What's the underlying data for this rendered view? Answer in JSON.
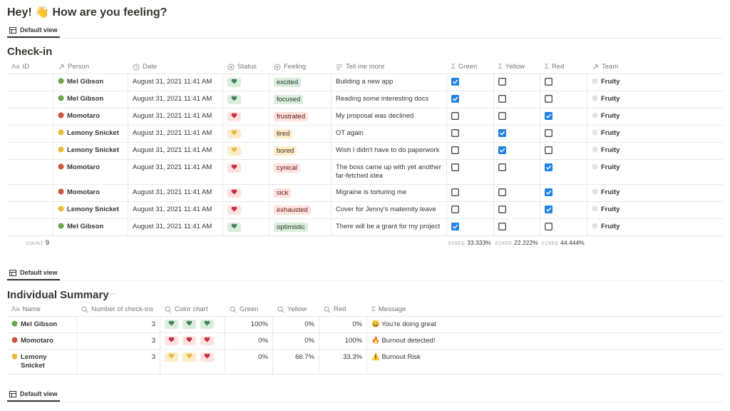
{
  "header": {
    "title": "Hey! 👋 How are you feeling?"
  },
  "views": [
    "Default view",
    "Default view",
    "Default view"
  ],
  "checkin": {
    "title": "Check-in",
    "columns": [
      {
        "icon": "Aa",
        "label": "ID"
      },
      {
        "label": "Person"
      },
      {
        "label": "Date"
      },
      {
        "label": "Status"
      },
      {
        "label": "Feeling"
      },
      {
        "label": "Tell me more"
      },
      {
        "icon": "Σ",
        "label": "Green"
      },
      {
        "icon": "Σ",
        "label": "Yellow"
      },
      {
        "icon": "Σ",
        "label": "Red"
      },
      {
        "label": "Team"
      }
    ],
    "rows": [
      {
        "person": "Mel Gibson",
        "person_color": "green",
        "date": "August 31, 2021 11:41 AM",
        "status": "green",
        "feeling": "excited",
        "text": "Building a new app",
        "checks": [
          true,
          false,
          false
        ],
        "team": "Fruity"
      },
      {
        "person": "Mel Gibson",
        "person_color": "green",
        "date": "August 31, 2021 11:41 AM",
        "status": "green",
        "feeling": "focused",
        "text": "Reading some interesting docs",
        "checks": [
          true,
          false,
          false
        ],
        "team": "Fruity"
      },
      {
        "person": "Momotaro",
        "person_color": "red",
        "date": "August 31, 2021 11:41 AM",
        "status": "red",
        "feeling": "frustrated",
        "text": "My proposal was declined",
        "checks": [
          false,
          false,
          true
        ],
        "team": "Fruity"
      },
      {
        "person": "Lemony Snicket",
        "person_color": "yellow",
        "date": "August 31, 2021 11:41 AM",
        "status": "yellow",
        "feeling": "tired",
        "text": "OT again",
        "checks": [
          false,
          true,
          false
        ],
        "team": "Fruity"
      },
      {
        "person": "Lemony Snicket",
        "person_color": "yellow",
        "date": "August 31, 2021 11:41 AM",
        "status": "yellow",
        "feeling": "bored",
        "text": "Wish I didn't have to do paperwork",
        "checks": [
          false,
          true,
          false
        ],
        "team": "Fruity"
      },
      {
        "person": "Momotaro",
        "person_color": "red",
        "date": "August 31, 2021 11:41 AM",
        "status": "red",
        "feeling": "cynical",
        "text": "The boss came up with yet another far-fetched idea",
        "checks": [
          false,
          false,
          true
        ],
        "team": "Fruity"
      },
      {
        "person": "Momotaro",
        "person_color": "red",
        "date": "August 31, 2021 11:41 AM",
        "status": "red",
        "feeling": "sick",
        "text": "Migraine is torturing me",
        "checks": [
          false,
          false,
          true
        ],
        "team": "Fruity"
      },
      {
        "person": "Lemony Snicket",
        "person_color": "yellow",
        "date": "August 31, 2021 11:41 AM",
        "status": "red",
        "feeling": "exhausted",
        "text": "Cover for Jenny's maternity leave",
        "checks": [
          false,
          false,
          true
        ],
        "team": "Fruity"
      },
      {
        "person": "Mel Gibson",
        "person_color": "green",
        "date": "August 31, 2021 11:41 AM",
        "status": "green",
        "feeling": "optimistic",
        "text": "There will be a grant for my project",
        "checks": [
          true,
          false,
          false
        ],
        "team": "Fruity"
      }
    ],
    "footer": {
      "count_label": "COUNT",
      "count": 9,
      "checked": [
        {
          "label": "ECKED",
          "value": "33.333%"
        },
        {
          "label": "ECKED",
          "value": "22.222%"
        },
        {
          "label": "ECKED",
          "value": "44.444%"
        }
      ]
    }
  },
  "summary": {
    "title": "Individual Summary",
    "menu": "···",
    "columns": [
      {
        "icon": "Aa",
        "label": "Name"
      },
      {
        "label": "Number of check-ins"
      },
      {
        "label": "Color chart"
      },
      {
        "label": "Green"
      },
      {
        "label": "Yellow"
      },
      {
        "label": "Red"
      },
      {
        "icon": "Σ",
        "label": "Message"
      }
    ],
    "rows": [
      {
        "name": "Mel Gibson",
        "person_color": "green",
        "checkins": 3,
        "chart": [
          "green",
          "green",
          "green"
        ],
        "green": "100%",
        "yellow": "0%",
        "red": "0%",
        "message": "😀 You're doing great"
      },
      {
        "name": "Momotaro",
        "person_color": "red",
        "checkins": 3,
        "chart": [
          "red",
          "red",
          "red"
        ],
        "green": "0%",
        "yellow": "0%",
        "red": "100%",
        "message": "🔥 Burnout detected!"
      },
      {
        "name": "Lemony Snicket",
        "person_color": "yellow",
        "checkins": 3,
        "chart": [
          "yellow",
          "yellow",
          "red"
        ],
        "green": "0%",
        "yellow": "66.7%",
        "red": "33.3%",
        "message": "⚠️ Burnout Risk"
      }
    ]
  }
}
